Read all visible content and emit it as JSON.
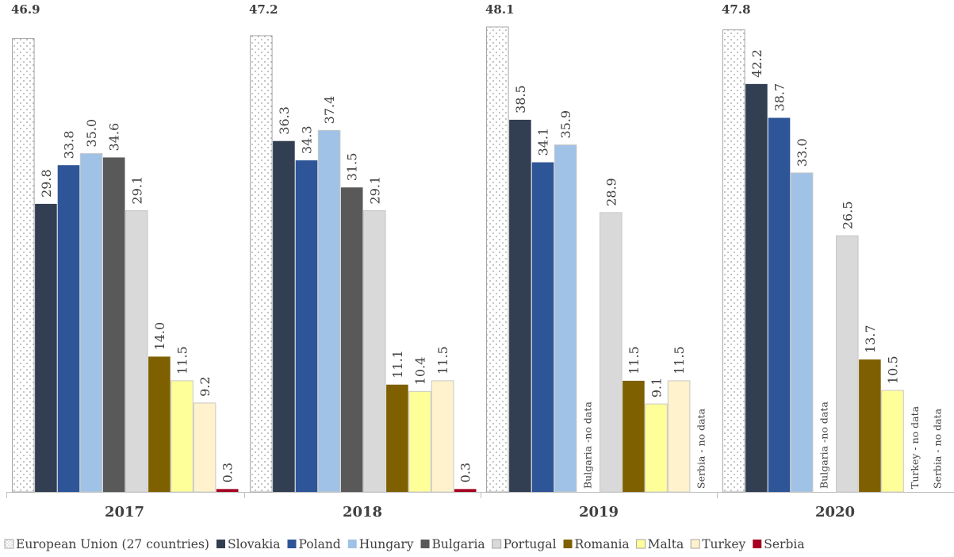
{
  "chart_data": {
    "type": "bar",
    "categories": [
      "2017",
      "2018",
      "2019",
      "2020"
    ],
    "series": [
      {
        "name": "European Union (27 countries)",
        "color": "#ffffff",
        "pattern": "dotted",
        "values": [
          46.9,
          47.2,
          48.1,
          47.8
        ]
      },
      {
        "name": "Slovakia",
        "color": "#323e52",
        "values": [
          29.8,
          36.3,
          38.5,
          42.2
        ]
      },
      {
        "name": "Poland",
        "color": "#2e5597",
        "values": [
          33.8,
          34.3,
          34.1,
          38.7
        ]
      },
      {
        "name": "Hungary",
        "color": "#9fc2e6",
        "values": [
          35.0,
          37.4,
          35.9,
          33.0
        ]
      },
      {
        "name": "Bulgaria",
        "color": "#595959",
        "values": [
          34.6,
          31.5,
          null,
          null
        ]
      },
      {
        "name": "Portugal",
        "color": "#d9d9d9",
        "values": [
          29.1,
          29.1,
          28.9,
          26.5
        ]
      },
      {
        "name": "Romania",
        "color": "#7f6000",
        "values": [
          14.0,
          11.1,
          11.5,
          13.7
        ]
      },
      {
        "name": "Malta",
        "color": "#ffff99",
        "values": [
          11.5,
          10.4,
          9.1,
          10.5
        ]
      },
      {
        "name": "Turkey",
        "color": "#fff2cc",
        "values": [
          9.2,
          11.5,
          11.5,
          null
        ]
      },
      {
        "name": "Serbia",
        "color": "#a50021",
        "values": [
          0.3,
          0.3,
          null,
          null
        ]
      }
    ],
    "value_labels": [
      [
        "46.9",
        "29.8",
        "33.8",
        "35.0",
        "34.6",
        "29.1",
        "14.0",
        "11.5",
        "9.2",
        "0.3"
      ],
      [
        "47.2",
        "36.3",
        "34.3",
        "37.4",
        "31.5",
        "29.1",
        "11.1",
        "10.4",
        "11.5",
        "0.3"
      ],
      [
        "48.1",
        "38.5",
        "34.1",
        "35.9",
        "",
        "28.9",
        "11.5",
        "9.1",
        "11.5",
        ""
      ],
      [
        "47.8",
        "42.2",
        "38.7",
        "33.0",
        "",
        "26.5",
        "13.7",
        "10.5",
        "",
        ""
      ]
    ],
    "no_data_notes": [
      {
        "category": "2019",
        "series": "Bulgaria",
        "text": "Bulgaria -no data"
      },
      {
        "category": "2019",
        "series": "Serbia",
        "text": "Serbia - no data"
      },
      {
        "category": "2020",
        "series": "Bulgaria",
        "text": "Bulgaria -no data"
      },
      {
        "category": "2020",
        "series": "Turkey",
        "text": "Turkey - no data"
      },
      {
        "category": "2020",
        "series": "Serbia",
        "text": "Serbia - no data"
      }
    ],
    "ylim": [
      0,
      49
    ],
    "grid": false,
    "legend_position": "bottom",
    "title": "",
    "xlabel": "",
    "ylabel": ""
  }
}
